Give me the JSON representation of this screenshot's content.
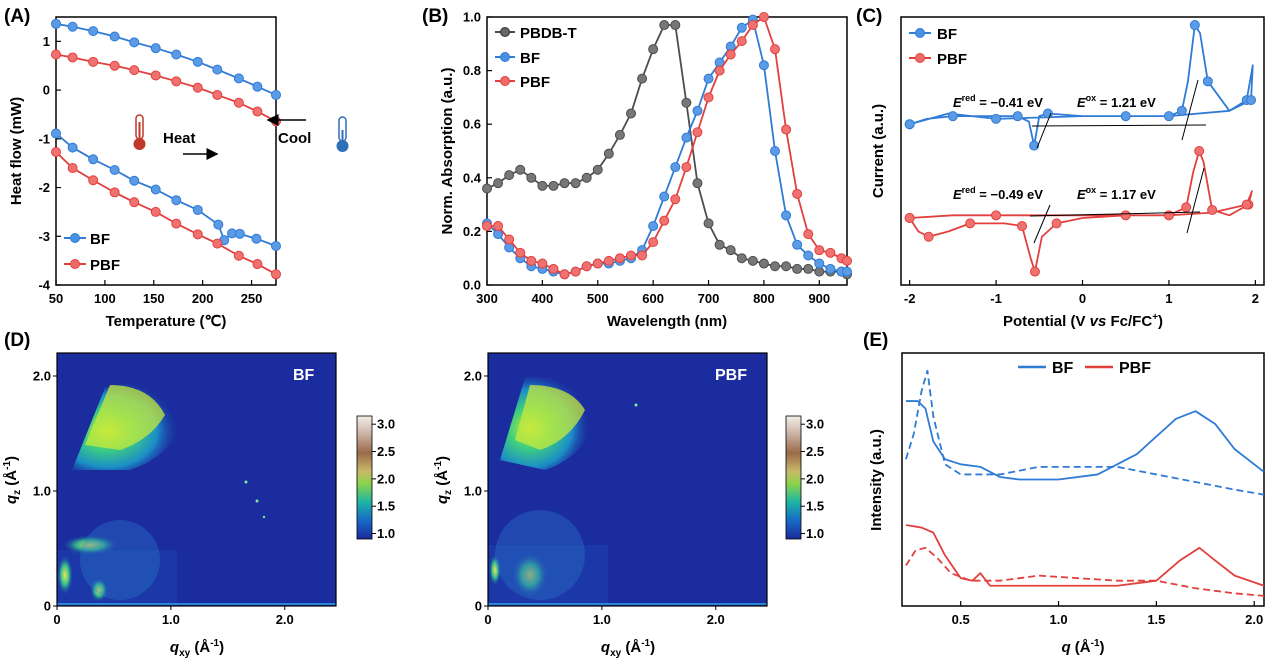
{
  "figure": {
    "panels": [
      "(A)",
      "(B)",
      "(C)",
      "(D)",
      "(E)"
    ],
    "colors": {
      "blue": "#2f7bd6",
      "red": "#e2403e",
      "gray": "#555555",
      "dark": "#000000"
    }
  },
  "chart_data": [
    {
      "panel": "(A)",
      "type": "line",
      "xlabel": "Temperature (℃)",
      "ylabel": "Heat flow (mW)",
      "xlim": [
        50,
        275
      ],
      "ylim": [
        -4,
        1.5
      ],
      "xticks": [
        50,
        100,
        150,
        200,
        250
      ],
      "yticks": [
        -4,
        -3,
        -2,
        -1,
        0,
        1
      ],
      "legend": "bottom-left",
      "annotations": [
        "Heat",
        "Cool"
      ],
      "series": [
        {
          "name": "BF",
          "color": "#2f7bd6",
          "x": [
            50,
            67,
            88,
            110,
            130,
            152,
            173,
            195,
            215,
            237,
            256,
            275
          ],
          "y": [
            1.36,
            1.3,
            1.21,
            1.1,
            0.98,
            0.86,
            0.73,
            0.58,
            0.42,
            0.24,
            0.07,
            -0.1
          ]
        },
        {
          "name": "PBF",
          "color": "#e2403e",
          "x": [
            50,
            67,
            88,
            110,
            130,
            152,
            173,
            195,
            215,
            237,
            256,
            275
          ],
          "y": [
            0.73,
            0.67,
            0.58,
            0.5,
            0.41,
            0.3,
            0.18,
            0.05,
            -0.1,
            -0.26,
            -0.44,
            -0.64
          ]
        },
        {
          "name": "BF",
          "color": "#2f7bd6",
          "x": [
            50,
            67,
            88,
            110,
            130,
            152,
            173,
            195,
            216,
            222,
            230,
            238,
            255,
            275
          ],
          "y": [
            -0.89,
            -1.18,
            -1.42,
            -1.64,
            -1.86,
            -2.04,
            -2.26,
            -2.46,
            -2.76,
            -3.08,
            -2.94,
            -2.95,
            -3.05,
            -3.2
          ]
        },
        {
          "name": "PBF",
          "color": "#e2403e",
          "x": [
            50,
            67,
            88,
            110,
            130,
            152,
            173,
            195,
            215,
            237,
            256,
            275
          ],
          "y": [
            -1.27,
            -1.6,
            -1.85,
            -2.1,
            -2.3,
            -2.5,
            -2.74,
            -2.96,
            -3.15,
            -3.4,
            -3.57,
            -3.78
          ]
        }
      ]
    },
    {
      "panel": "(B)",
      "type": "line",
      "xlabel": "Wavelength (nm)",
      "ylabel": "Norm. Absorption (a.u.)",
      "xlim": [
        300,
        950
      ],
      "ylim": [
        0,
        1.0
      ],
      "xticks": [
        300,
        400,
        500,
        600,
        700,
        800,
        900
      ],
      "yticks": [
        0.0,
        0.2,
        0.4,
        0.6,
        0.8,
        1.0
      ],
      "legend": "top-left",
      "series": [
        {
          "name": "PBDB-T",
          "color": "#4d4d4d",
          "x": [
            300,
            320,
            340,
            360,
            380,
            400,
            420,
            440,
            460,
            480,
            500,
            520,
            540,
            560,
            580,
            600,
            620,
            640,
            660,
            680,
            700,
            720,
            740,
            760,
            780,
            800,
            820,
            840,
            860,
            880,
            900,
            920,
            940,
            950
          ],
          "y": [
            0.36,
            0.38,
            0.41,
            0.43,
            0.4,
            0.37,
            0.37,
            0.38,
            0.38,
            0.4,
            0.43,
            0.49,
            0.56,
            0.64,
            0.77,
            0.88,
            0.97,
            0.97,
            0.68,
            0.38,
            0.23,
            0.15,
            0.13,
            0.1,
            0.09,
            0.08,
            0.07,
            0.07,
            0.06,
            0.06,
            0.05,
            0.05,
            0.05,
            0.04
          ]
        },
        {
          "name": "BF",
          "color": "#2f7bd6",
          "x": [
            300,
            320,
            340,
            360,
            380,
            400,
            420,
            440,
            460,
            480,
            500,
            520,
            540,
            560,
            580,
            600,
            620,
            640,
            660,
            680,
            700,
            720,
            740,
            760,
            780,
            800,
            820,
            840,
            860,
            880,
            900,
            920,
            940,
            950
          ],
          "y": [
            0.23,
            0.19,
            0.14,
            0.1,
            0.07,
            0.06,
            0.05,
            0.04,
            0.05,
            0.07,
            0.08,
            0.08,
            0.09,
            0.1,
            0.13,
            0.22,
            0.33,
            0.44,
            0.55,
            0.65,
            0.77,
            0.83,
            0.89,
            0.96,
            0.99,
            0.82,
            0.5,
            0.26,
            0.15,
            0.11,
            0.08,
            0.06,
            0.05,
            0.05
          ]
        },
        {
          "name": "PBF",
          "color": "#e2403e",
          "x": [
            300,
            320,
            340,
            360,
            380,
            400,
            420,
            440,
            460,
            480,
            500,
            520,
            540,
            560,
            580,
            600,
            620,
            640,
            660,
            680,
            700,
            720,
            740,
            760,
            780,
            800,
            820,
            840,
            860,
            880,
            900,
            920,
            940,
            950
          ],
          "y": [
            0.22,
            0.22,
            0.17,
            0.12,
            0.09,
            0.08,
            0.06,
            0.04,
            0.05,
            0.07,
            0.08,
            0.09,
            0.1,
            0.11,
            0.11,
            0.16,
            0.24,
            0.32,
            0.44,
            0.57,
            0.7,
            0.8,
            0.86,
            0.91,
            0.97,
            1.0,
            0.88,
            0.58,
            0.34,
            0.19,
            0.13,
            0.12,
            0.1,
            0.09
          ]
        }
      ]
    },
    {
      "panel": "(C)",
      "type": "line",
      "xlabel": "Potential (V vs Fc/FC+)",
      "ylabel": "Current (a.u.)",
      "xlim": [
        -2.1,
        2.1
      ],
      "ylim": [
        0,
        10
      ],
      "xticks": [
        -2,
        -1,
        0,
        1,
        2
      ],
      "legend": "top-left",
      "annotations": [
        "E red = −0.41 eV",
        "E ox = 1.21 eV",
        "E red = −0.49 eV",
        "E ox = 1.17 eV"
      ],
      "series": [
        {
          "name": "BF",
          "color": "#2f7bd6",
          "x": [
            -2.0,
            -1.8,
            -1.5,
            -1.0,
            -0.75,
            -0.62,
            -0.56,
            -0.5,
            -0.4,
            0.0,
            0.5,
            1.0,
            1.15,
            1.22,
            1.3,
            1.36,
            1.45,
            1.7,
            1.9,
            1.97,
            1.95,
            1.7,
            1.0,
            0.0,
            -1.0,
            -1.55,
            -2.0
          ],
          "y": [
            6.0,
            6.2,
            6.3,
            6.3,
            6.3,
            6.1,
            5.2,
            6.3,
            6.4,
            6.3,
            6.3,
            6.3,
            6.5,
            7.6,
            9.7,
            9.4,
            7.6,
            6.5,
            6.9,
            8.2,
            6.9,
            6.5,
            6.3,
            6.3,
            6.2,
            6.4,
            6.0
          ]
        },
        {
          "name": "PBF",
          "color": "#e2403e",
          "x": [
            -2.0,
            -1.9,
            -1.78,
            -1.55,
            -1.3,
            -0.9,
            -0.7,
            -0.6,
            -0.55,
            -0.47,
            -0.3,
            0.0,
            0.5,
            1.0,
            1.2,
            1.28,
            1.35,
            1.4,
            1.5,
            1.7,
            1.92,
            1.96,
            1.9,
            1.5,
            1.0,
            0.0,
            -1.0,
            -1.5,
            -2.0
          ],
          "y": [
            2.5,
            2.0,
            1.8,
            2.0,
            2.3,
            2.3,
            2.2,
            1.0,
            0.5,
            1.8,
            2.3,
            2.5,
            2.6,
            2.6,
            2.9,
            4.2,
            5.0,
            4.6,
            2.8,
            2.6,
            3.0,
            3.5,
            3.0,
            2.7,
            2.6,
            2.6,
            2.6,
            2.6,
            2.5
          ]
        }
      ]
    },
    {
      "panel": "(D)",
      "type": "heatmap",
      "maps": [
        "BF",
        "PBF"
      ],
      "xlabel": "qxy (Å-1)",
      "ylabel": "qz (Å-1)",
      "xticks": [
        0,
        1.0,
        2.0
      ],
      "yticks": [
        0,
        1.0,
        2.0
      ],
      "colorbar_ticks": [
        1.0,
        1.5,
        2.0,
        2.5,
        3.0
      ]
    },
    {
      "panel": "(E)",
      "type": "line",
      "xlabel": "q (Å-1)",
      "ylabel": "Intensity (a.u.)",
      "xlim": [
        0.2,
        2.05
      ],
      "ylim": [
        0,
        10
      ],
      "xticks": [
        0.5,
        1.0,
        1.5,
        2.0
      ],
      "legend": "top",
      "series": [
        {
          "name": "BF",
          "color": "#2f7bd6",
          "style": "solid",
          "x": [
            0.22,
            0.28,
            0.32,
            0.36,
            0.42,
            0.5,
            0.6,
            0.7,
            0.8,
            1.0,
            1.2,
            1.4,
            1.6,
            1.7,
            1.8,
            1.9,
            2.05
          ],
          "y": [
            8.1,
            8.1,
            7.8,
            6.5,
            5.8,
            5.6,
            5.5,
            5.1,
            5.0,
            5.0,
            5.2,
            6.0,
            7.4,
            7.7,
            7.2,
            6.2,
            5.3
          ]
        },
        {
          "name": "",
          "color": "#2f7bd6",
          "style": "dashed",
          "x": [
            0.22,
            0.26,
            0.3,
            0.33,
            0.36,
            0.42,
            0.5,
            0.7,
            0.9,
            1.1,
            1.3,
            1.5,
            1.7,
            1.9,
            2.05
          ],
          "y": [
            5.8,
            6.8,
            8.5,
            9.3,
            7.5,
            5.6,
            5.2,
            5.2,
            5.5,
            5.5,
            5.5,
            5.2,
            4.9,
            4.6,
            4.4
          ]
        },
        {
          "name": "PBF",
          "color": "#e2403e",
          "style": "solid",
          "x": [
            0.22,
            0.3,
            0.36,
            0.42,
            0.5,
            0.56,
            0.6,
            0.65,
            0.75,
            1.0,
            1.3,
            1.5,
            1.62,
            1.72,
            1.8,
            1.9,
            2.05
          ],
          "y": [
            3.2,
            3.1,
            2.9,
            2.0,
            1.1,
            1.0,
            1.3,
            0.8,
            0.8,
            0.8,
            0.8,
            1.0,
            1.8,
            2.3,
            1.8,
            1.2,
            0.8
          ]
        },
        {
          "name": "",
          "color": "#e2403e",
          "style": "dashed",
          "x": [
            0.22,
            0.27,
            0.32,
            0.38,
            0.45,
            0.55,
            0.7,
            0.9,
            1.1,
            1.3,
            1.5,
            1.7,
            1.9,
            2.05
          ],
          "y": [
            1.6,
            2.2,
            2.3,
            1.9,
            1.3,
            1.0,
            1.0,
            1.2,
            1.1,
            1.0,
            1.0,
            0.7,
            0.5,
            0.4
          ]
        }
      ]
    }
  ]
}
